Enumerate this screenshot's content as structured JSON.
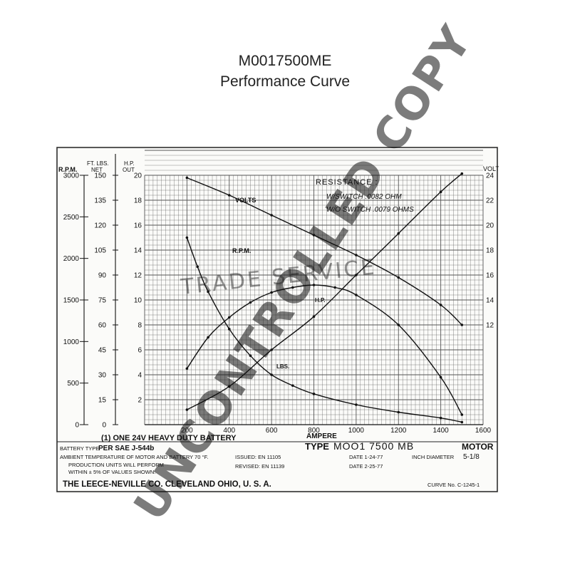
{
  "page": {
    "title": "M0017500ME",
    "subtitle": "Performance Curve"
  },
  "axes": {
    "rpm_title_1": "R.P.M.",
    "ft_lbs_title_1": "FT. LBS.",
    "ft_lbs_title_2": "NET",
    "hp_title_1": "H.P.",
    "hp_title_2": "OUT",
    "volt_title": "VOLT",
    "xlabel": "AMPERE",
    "rpm_ticks": [
      "3000",
      "2500",
      "2000",
      "1500",
      "1000",
      "500",
      "0"
    ],
    "ft_lbs_ticks": [
      "150",
      "135",
      "120",
      "105",
      "90",
      "75",
      "60",
      "45",
      "30",
      "15",
      "0"
    ],
    "hp_ticks": [
      "2",
      "4",
      "6",
      "8",
      "10",
      "12",
      "14",
      "16",
      "18",
      "20"
    ],
    "volt_ticks": [
      "12",
      "14",
      "16",
      "18",
      "20",
      "22",
      "24"
    ],
    "x_ticks": [
      "200",
      "400",
      "600",
      "800",
      "1000",
      "1200",
      "1400",
      "1600"
    ]
  },
  "resistance": {
    "heading": "RESISTANCE :",
    "line1": "W/SWITCH  .0082 OHM",
    "line2": "W/O SWITCH  .0079 OHMS"
  },
  "curve_labels": {
    "volts": "VOLTS",
    "rpm": "R.P.M.",
    "hp": "H.P.",
    "lbs": "LBS."
  },
  "footer": {
    "battery_line": "(1) ONE 24V HEAVY DUTY BATTERY",
    "battery_type_label": "BATTERY TYPE",
    "battery_type_value": "PER SAE J-544b",
    "ambient": "AMBIENT TEMPERATURE OF MOTOR AND BATTERY 70 °F.",
    "production_1": "PRODUCTION UNITS WILL PERFORM",
    "production_2": "WITHIN ± 5% OF VALUES SHOWN.",
    "issued": "ISSUED: EN 11105",
    "revised": "REVISED: EN 11139",
    "type_label": "TYPE",
    "type_value": "MOO1 7500 MB",
    "motor": "MOTOR",
    "date_1": "DATE  1-24-77",
    "inch_diameter": "INCH DIAMETER",
    "diameter_value": "5-1/8",
    "date_2": "DATE  2-25-77",
    "company": "THE LEECE-NEVILLE CO. CLEVELAND OHIO, U. S. A.",
    "curve_no": "CURVE No. C-1245-1"
  },
  "watermarks": {
    "uncontrolled": "UNCONTROLLED COPY",
    "trade_service": "TRADE SERVICE"
  },
  "colors": {
    "ink": "#111111",
    "grid": "#555555",
    "paper": "#fbfbf9",
    "watermark": "#c8c8c8"
  },
  "chart_data": {
    "type": "line",
    "x_label": "AMPERE",
    "xlim": [
      0,
      1600
    ],
    "axes_ranges": {
      "rpm": [
        0,
        3000
      ],
      "ft_lbs": [
        0,
        150
      ],
      "hp": [
        0,
        20
      ],
      "volt": [
        12,
        24
      ]
    },
    "grid": true,
    "series": [
      {
        "name": "VOLTS",
        "axis": "volt",
        "x": [
          200,
          400,
          600,
          800,
          1000,
          1200,
          1400,
          1500
        ],
        "y": [
          23.8,
          22.4,
          20.8,
          19.2,
          17.6,
          15.8,
          13.6,
          12.0
        ]
      },
      {
        "name": "R.P.M.",
        "axis": "rpm",
        "x": [
          200,
          250,
          300,
          400,
          500,
          600,
          700,
          800,
          1000,
          1200,
          1400,
          1500
        ],
        "y": [
          2250,
          1900,
          1600,
          1150,
          830,
          600,
          470,
          370,
          240,
          150,
          80,
          30
        ]
      },
      {
        "name": "H.P.",
        "axis": "hp",
        "x": [
          200,
          300,
          400,
          500,
          600,
          700,
          800,
          900,
          1000,
          1200,
          1400,
          1500
        ],
        "y": [
          4.5,
          7.0,
          8.6,
          9.8,
          10.6,
          11.0,
          11.2,
          11.0,
          10.4,
          8.0,
          3.8,
          0.8
        ]
      },
      {
        "name": "LBS.",
        "axis": "ft_lbs",
        "x": [
          200,
          400,
          600,
          800,
          1000,
          1200,
          1400,
          1500
        ],
        "y": [
          9,
          23,
          45,
          65,
          90,
          115,
          140,
          151
        ]
      }
    ]
  }
}
